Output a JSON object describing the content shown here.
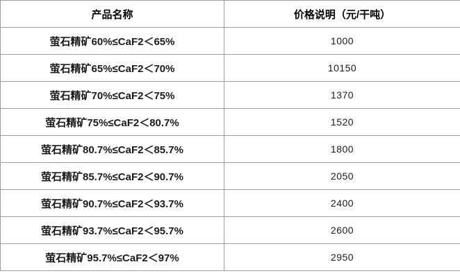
{
  "table": {
    "headers": {
      "product": "产品名称",
      "price": "价格说明（元/干吨）"
    },
    "rows": [
      {
        "product": "萤石精矿60%≤CaF2＜65%",
        "price": "1000"
      },
      {
        "product": "萤石精矿65%≤CaF2＜70%",
        "price": "10150"
      },
      {
        "product": "萤石精矿70%≤CaF2＜75%",
        "price": "1370"
      },
      {
        "product": "萤石精矿75%≤CaF2＜80.7%",
        "price": "1520"
      },
      {
        "product": "萤石精矿80.7%≤CaF2＜85.7%",
        "price": "1800"
      },
      {
        "product": "萤石精矿85.7%≤CaF2＜90.7%",
        "price": "2050"
      },
      {
        "product": "萤石精矿90.7%≤CaF2＜93.7%",
        "price": "2400"
      },
      {
        "product": "萤石精矿93.7%≤CaF2＜95.7%",
        "price": "2600"
      },
      {
        "product": "萤石精矿95.7%≤CaF2＜97%",
        "price": "2950"
      }
    ]
  },
  "colors": {
    "border_inner": "#9c9c9c",
    "border_outer_top": "#8a8a8a",
    "border_outer_left": "#c9c9c9",
    "background": "#ffffff",
    "text": "#1a1a1a"
  },
  "chart_data": {
    "type": "table",
    "title": "",
    "columns": [
      "产品名称",
      "价格说明（元/干吨）"
    ],
    "rows": [
      [
        "萤石精矿60%≤CaF2＜65%",
        1000
      ],
      [
        "萤石精矿65%≤CaF2＜70%",
        10150
      ],
      [
        "萤石精矿70%≤CaF2＜75%",
        1370
      ],
      [
        "萤石精矿75%≤CaF2＜80.7%",
        1520
      ],
      [
        "萤石精矿80.7%≤CaF2＜85.7%",
        1800
      ],
      [
        "萤石精矿85.7%≤CaF2＜90.7%",
        2050
      ],
      [
        "萤石精矿90.7%≤CaF2＜93.7%",
        2400
      ],
      [
        "萤石精矿93.7%≤CaF2＜95.7%",
        2600
      ],
      [
        "萤石精矿95.7%≤CaF2＜97%",
        2950
      ]
    ]
  }
}
